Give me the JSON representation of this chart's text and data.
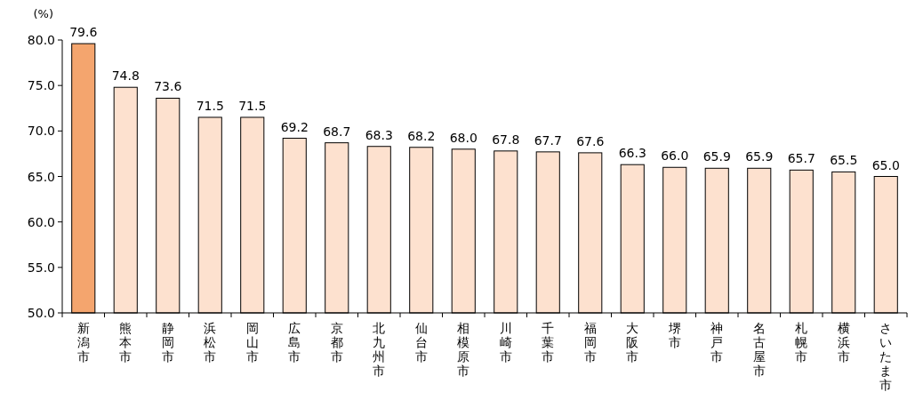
{
  "chart_data": {
    "type": "bar",
    "ylabel": "(%)",
    "categories": [
      "新潟市",
      "熊本市",
      "静岡市",
      "浜松市",
      "岡山市",
      "広島市",
      "京都市",
      "北九州市",
      "仙台市",
      "相模原市",
      "川崎市",
      "千葉市",
      "福岡市",
      "大阪市",
      "堺市",
      "神戸市",
      "名古屋市",
      "札幌市",
      "横浜市",
      "さいたま市"
    ],
    "values": [
      79.6,
      74.8,
      73.6,
      71.5,
      71.5,
      69.2,
      68.7,
      68.3,
      68.2,
      68.0,
      67.8,
      67.7,
      67.6,
      66.3,
      66.0,
      65.9,
      65.9,
      65.7,
      65.5,
      65.0
    ],
    "value_labels": [
      "79.6",
      "74.8",
      "73.6",
      "71.5",
      "71.5",
      "69.2",
      "68.7",
      "68.3",
      "68.2",
      "68.0",
      "67.8",
      "67.7",
      "67.6",
      "66.3",
      "66.0",
      "65.9",
      "65.9",
      "65.7",
      "65.5",
      "65.0"
    ],
    "colors": [
      "#f4a56e",
      "#fde1cf",
      "#fde1cf",
      "#fde1cf",
      "#fde1cf",
      "#fde1cf",
      "#fde1cf",
      "#fde1cf",
      "#fde1cf",
      "#fde1cf",
      "#fde1cf",
      "#fde1cf",
      "#fde1cf",
      "#fde1cf",
      "#fde1cf",
      "#fde1cf",
      "#fde1cf",
      "#fde1cf",
      "#fde1cf",
      "#fde1cf"
    ],
    "ylim": [
      50,
      80
    ],
    "yticks": [
      {
        "value": 50,
        "label": "50.0"
      },
      {
        "value": 55,
        "label": "55.0"
      },
      {
        "value": 60,
        "label": "60.0"
      },
      {
        "value": 65,
        "label": "65.0"
      },
      {
        "value": 70,
        "label": "70.0"
      },
      {
        "value": 75,
        "label": "75.0"
      },
      {
        "value": 80,
        "label": "80.0"
      }
    ],
    "grid": false
  }
}
